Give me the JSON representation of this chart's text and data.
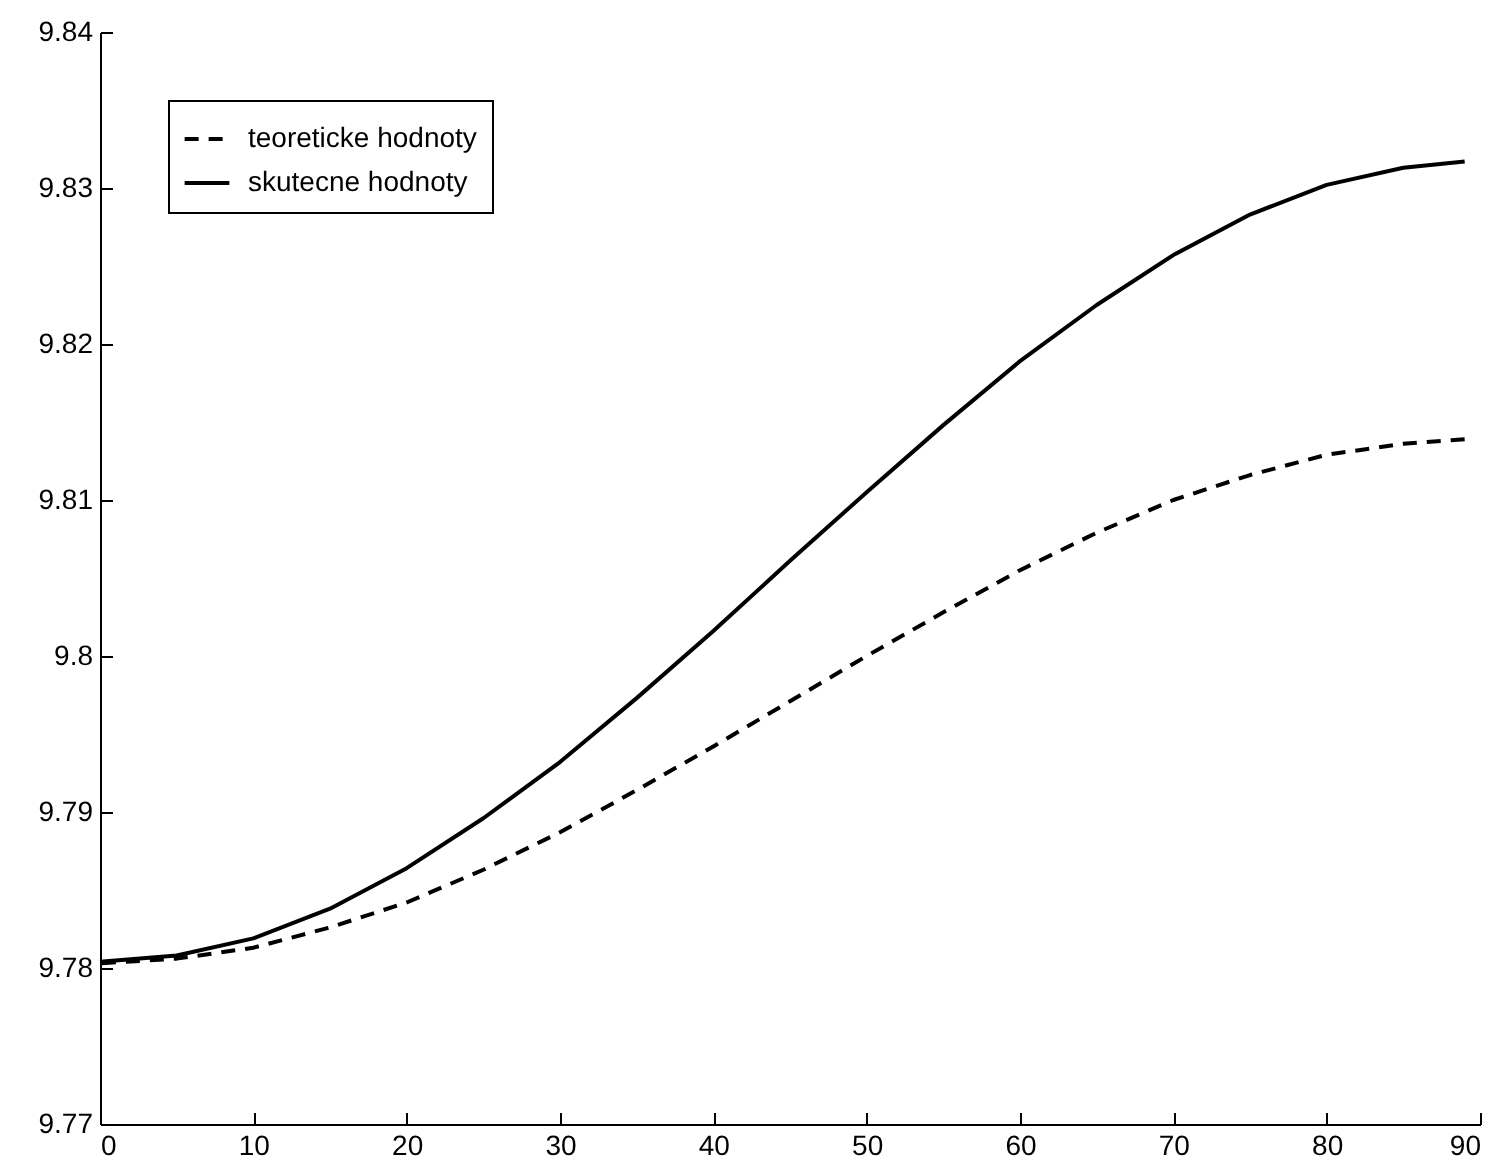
{
  "chart_data": {
    "type": "line",
    "x": [
      0,
      5,
      10,
      15,
      20,
      25,
      30,
      35,
      40,
      45,
      50,
      55,
      60,
      65,
      70,
      75,
      80,
      85,
      89
    ],
    "series": [
      {
        "name": "teoreticke hodnoty",
        "color": "#000000",
        "line_style": "dashed",
        "values": [
          9.7803,
          9.7806,
          9.7813,
          9.7826,
          9.7842,
          9.7863,
          9.7887,
          9.7914,
          9.7942,
          9.7971,
          9.8,
          9.8028,
          9.8055,
          9.8079,
          9.81,
          9.8116,
          9.8129,
          9.8136,
          9.8139
        ]
      },
      {
        "name": "skutecne hodnoty",
        "color": "#000000",
        "line_style": "solid",
        "values": [
          9.7804,
          9.7808,
          9.7819,
          9.7838,
          9.7864,
          9.7896,
          9.7932,
          9.7973,
          9.8016,
          9.8061,
          9.8105,
          9.8148,
          9.8189,
          9.8225,
          9.8257,
          9.8283,
          9.8302,
          9.8313,
          9.8317
        ]
      }
    ],
    "xlim": [
      0,
      90
    ],
    "xticks": [
      0,
      10,
      20,
      30,
      40,
      50,
      60,
      70,
      80,
      90
    ],
    "ylim": [
      9.77,
      9.84
    ],
    "yticks": [
      9.77,
      9.78,
      9.79,
      {
        "value": 9.8,
        "label": "9.8"
      },
      9.81,
      9.82,
      9.83,
      9.84
    ],
    "grid": false,
    "legend": "top left",
    "marker": "none"
  }
}
